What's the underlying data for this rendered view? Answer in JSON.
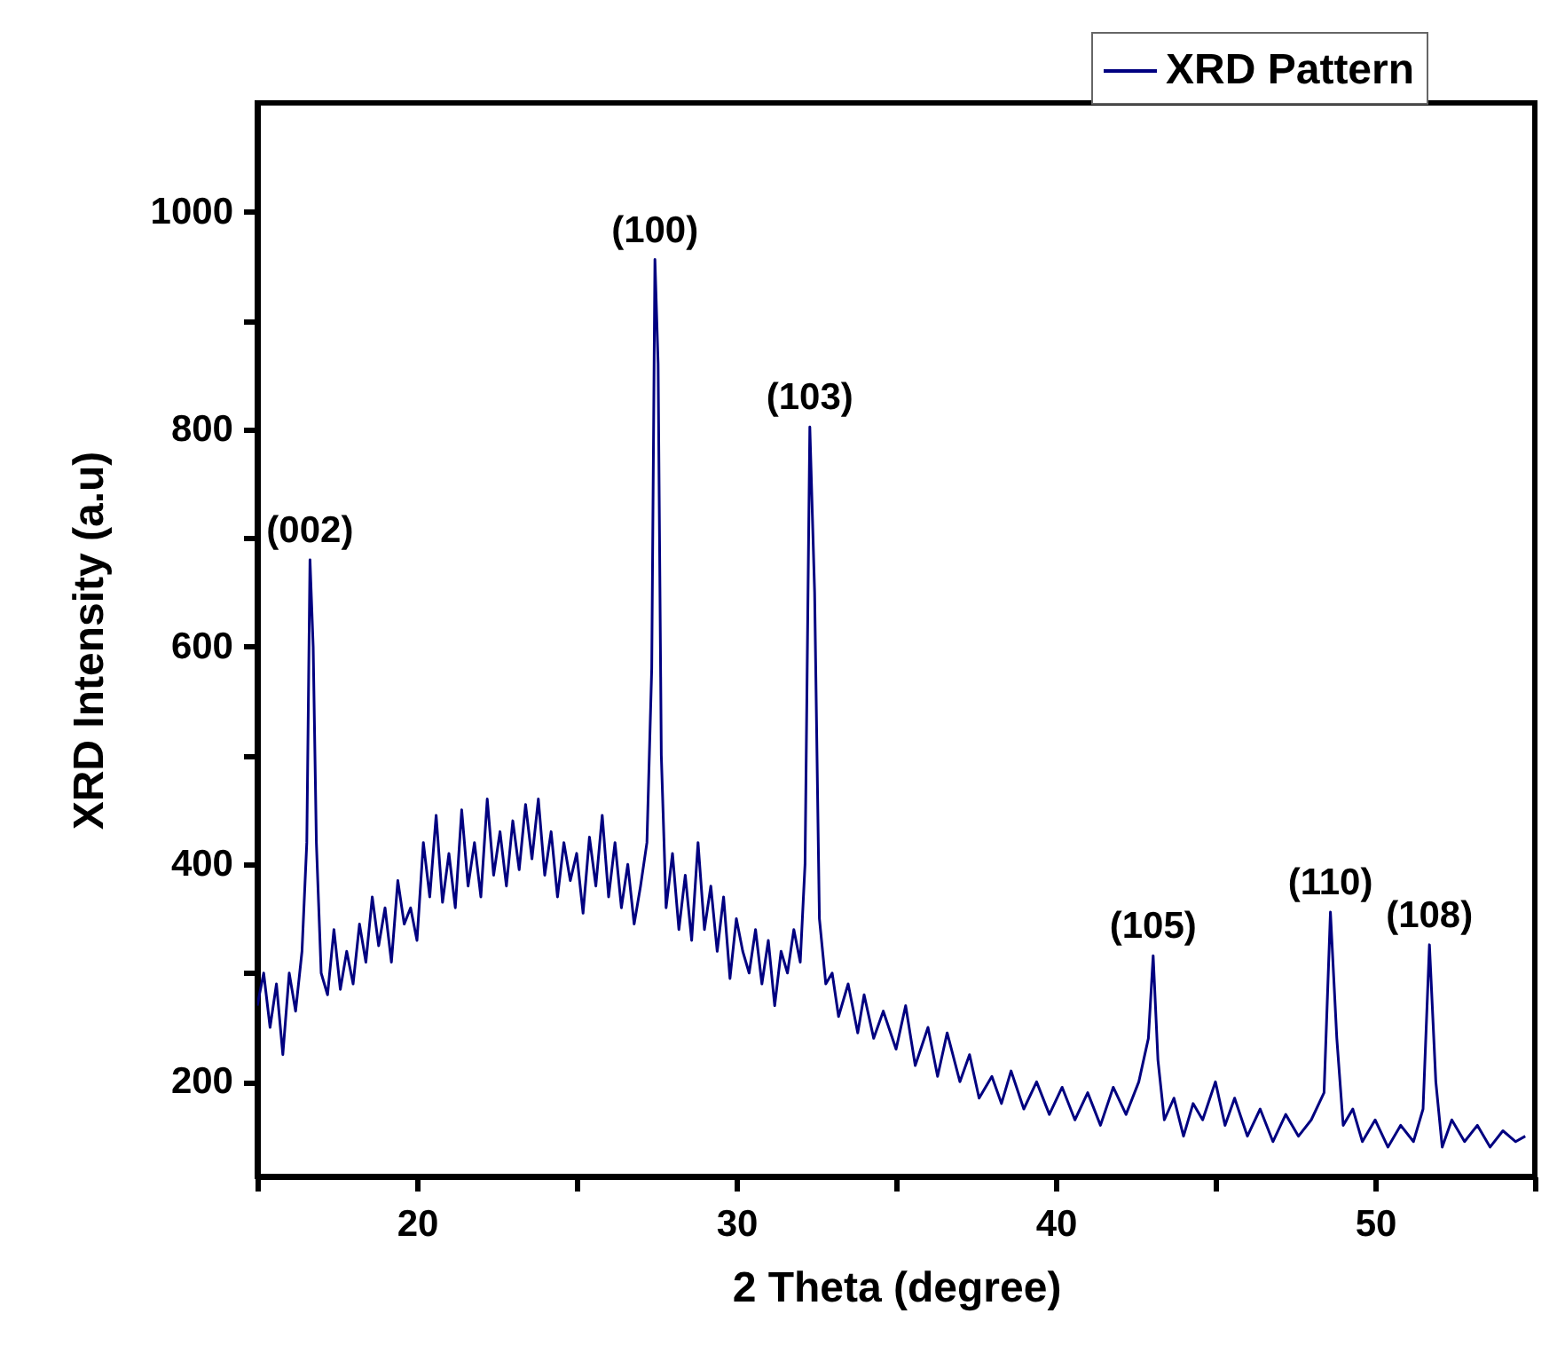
{
  "chart_data": {
    "type": "line",
    "xlabel": "2 Theta (degree)",
    "ylabel": "XRD Intensity (a.u)",
    "xlim": [
      15,
      55
    ],
    "ylim": [
      113,
      1100
    ],
    "xticks": [
      {
        "value": 15,
        "label": null
      },
      20,
      {
        "value": 25,
        "label": null
      },
      30,
      {
        "value": 35,
        "label": null
      },
      40,
      {
        "value": 45,
        "label": null
      },
      50,
      {
        "value": 55,
        "label": null
      }
    ],
    "yticks": [
      200,
      {
        "value": 300,
        "label": null
      },
      400,
      {
        "value": 500,
        "label": null
      },
      600,
      {
        "value": 700,
        "label": null
      },
      800,
      {
        "value": 900,
        "label": null
      },
      1000
    ],
    "legend": "top right",
    "grid": false,
    "annotations": [
      {
        "text": "(002)",
        "x": 16.65,
        "y": 680
      },
      {
        "text": "(100)",
        "x": 27.45,
        "y": 956
      },
      {
        "text": "(103)",
        "x": 32.3,
        "y": 802
      },
      {
        "text": "(105)",
        "x": 43.05,
        "y": 316
      },
      {
        "text": "(110)",
        "x": 48.6,
        "y": 356
      },
      {
        "text": "(108)",
        "x": 51.7,
        "y": 326
      }
    ],
    "series": [
      {
        "name": "XRD Pattern",
        "color": "#000080",
        "x": [
          15,
          15.2,
          15.4,
          15.6,
          15.8,
          16,
          16.2,
          16.4,
          16.55,
          16.65,
          16.75,
          16.85,
          17,
          17.2,
          17.4,
          17.6,
          17.8,
          18,
          18.2,
          18.4,
          18.6,
          18.8,
          19,
          19.2,
          19.4,
          19.6,
          19.8,
          20,
          20.2,
          20.4,
          20.6,
          20.8,
          21,
          21.2,
          21.4,
          21.6,
          21.8,
          22,
          22.2,
          22.4,
          22.6,
          22.8,
          23,
          23.2,
          23.4,
          23.6,
          23.8,
          24,
          24.2,
          24.4,
          24.6,
          24.8,
          25,
          25.2,
          25.4,
          25.6,
          25.8,
          26,
          26.2,
          26.4,
          26.6,
          26.8,
          27,
          27.2,
          27.35,
          27.45,
          27.55,
          27.65,
          27.8,
          28,
          28.2,
          28.4,
          28.6,
          28.8,
          29,
          29.2,
          29.4,
          29.6,
          29.8,
          30,
          30.2,
          30.4,
          30.6,
          30.8,
          31,
          31.2,
          31.4,
          31.6,
          31.8,
          32,
          32.15,
          32.3,
          32.45,
          32.6,
          32.8,
          33,
          33.2,
          33.5,
          33.8,
          34,
          34.3,
          34.6,
          35,
          35.3,
          35.6,
          36,
          36.3,
          36.6,
          37,
          37.3,
          37.6,
          38,
          38.3,
          38.6,
          39,
          39.4,
          39.8,
          40.2,
          40.6,
          41,
          41.4,
          41.8,
          42.2,
          42.6,
          42.9,
          43.05,
          43.2,
          43.4,
          43.7,
          44,
          44.3,
          44.6,
          45,
          45.3,
          45.6,
          46,
          46.4,
          46.8,
          47.2,
          47.6,
          48,
          48.4,
          48.6,
          48.8,
          49,
          49.3,
          49.6,
          50,
          50.4,
          50.8,
          51.2,
          51.5,
          51.7,
          51.9,
          52.1,
          52.4,
          52.8,
          53.2,
          53.6,
          54,
          54.4,
          54.7
        ],
        "values": [
          270,
          300,
          250,
          290,
          225,
          300,
          265,
          320,
          420,
          680,
          600,
          420,
          300,
          280,
          340,
          285,
          320,
          290,
          345,
          310,
          370,
          325,
          360,
          310,
          385,
          345,
          360,
          330,
          420,
          370,
          445,
          365,
          410,
          360,
          450,
          380,
          420,
          370,
          460,
          390,
          430,
          380,
          440,
          395,
          455,
          405,
          460,
          390,
          430,
          370,
          420,
          385,
          410,
          355,
          425,
          380,
          445,
          370,
          420,
          360,
          400,
          345,
          380,
          420,
          580,
          956,
          860,
          500,
          360,
          410,
          340,
          390,
          330,
          420,
          340,
          380,
          320,
          370,
          295,
          350,
          320,
          300,
          340,
          290,
          330,
          270,
          320,
          300,
          340,
          310,
          400,
          802,
          650,
          350,
          290,
          300,
          260,
          290,
          245,
          280,
          240,
          265,
          230,
          270,
          215,
          250,
          205,
          245,
          200,
          225,
          185,
          205,
          180,
          210,
          175,
          200,
          170,
          195,
          165,
          190,
          160,
          195,
          170,
          200,
          240,
          316,
          220,
          165,
          185,
          150,
          180,
          165,
          200,
          160,
          185,
          150,
          175,
          145,
          170,
          150,
          165,
          190,
          356,
          240,
          160,
          175,
          145,
          165,
          140,
          160,
          145,
          175,
          326,
          200,
          140,
          165,
          145,
          160,
          140,
          155,
          145,
          150
        ]
      }
    ]
  }
}
